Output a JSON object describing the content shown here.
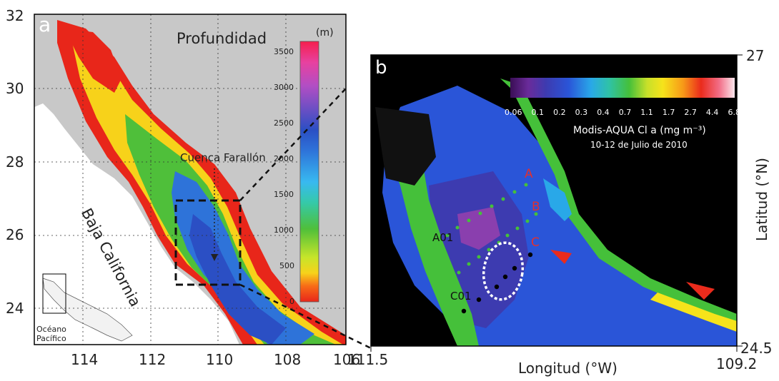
{
  "panel_a": {
    "letter": "a",
    "title": "Profundidad",
    "colorbar_unit": "(m)",
    "colorbar_ticks": [
      "3500",
      "3000",
      "2500",
      "2000",
      "1500",
      "1000",
      "500",
      "0"
    ],
    "lat_ticks": [
      "32",
      "30",
      "28",
      "26",
      "24"
    ],
    "lon_ticks": [
      "114",
      "112",
      "110",
      "108",
      "106"
    ],
    "label_basin": "Cuenca Farallón",
    "label_peninsula": "Baja California",
    "label_ocean": "Océano\nPacífico"
  },
  "panel_b": {
    "letter": "b",
    "colorbar_ticks": [
      "0.06",
      "0.1",
      "0.2",
      "0.3",
      "0.4",
      "0.7",
      "1.1",
      "1.7",
      "2.7",
      "4.4",
      "6.8"
    ],
    "colorbar_title": "Modis-AQUA Cl a (mg m⁻³)",
    "colorbar_subtitle": "10-12 de Julio de 2010",
    "line_labels": [
      "A",
      "B",
      "C"
    ],
    "station_labels": [
      "A01",
      "C01"
    ],
    "lat_top": "27",
    "lat_bottom": "24.5",
    "lon_left": "111.5",
    "lon_right": "109.2",
    "xlabel": "Longitud (°W)",
    "ylabel": "Latitud (°N)"
  },
  "colors": {
    "land": "#c8c8c8",
    "deep": "#2b4fc4",
    "shallow": "#e8261a",
    "accent_label": "#e03030",
    "night": "#000000"
  }
}
